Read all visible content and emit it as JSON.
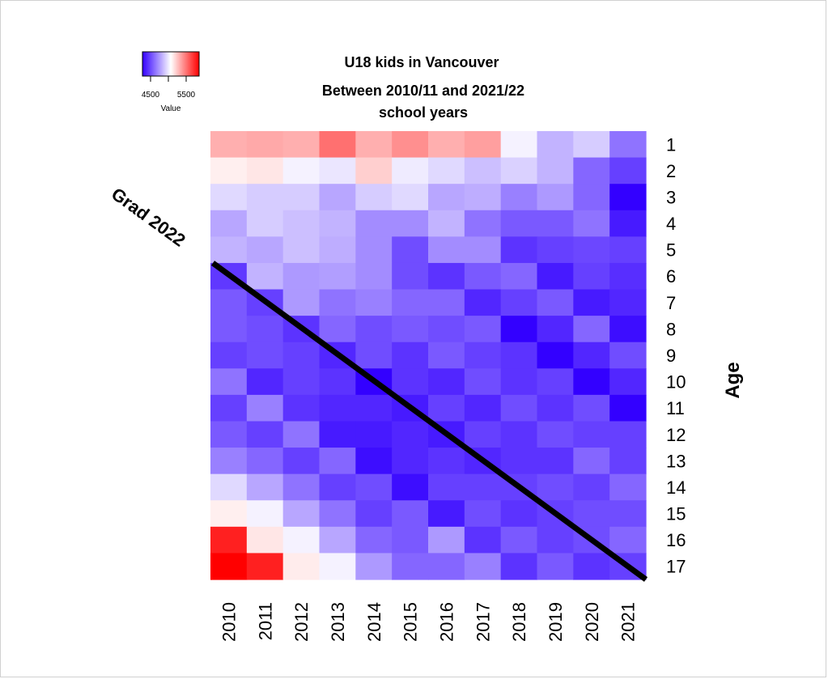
{
  "chart_data": {
    "type": "heatmap",
    "title_lines": [
      "U18 kids in Vancouver",
      "Between 2010/11 and 2021/22",
      "school years"
    ],
    "xlabel": "",
    "ylabel": "Age",
    "x_categories": [
      "2010",
      "2011",
      "2012",
      "2013",
      "2014",
      "2015",
      "2016",
      "2017",
      "2018",
      "2019",
      "2020",
      "2021"
    ],
    "y_categories": [
      "1",
      "2",
      "3",
      "4",
      "5",
      "6",
      "7",
      "8",
      "9",
      "10",
      "11",
      "12",
      "13",
      "14",
      "15",
      "16",
      "17"
    ],
    "values": [
      [
        5150,
        5170,
        5150,
        5350,
        5150,
        5250,
        5150,
        5200,
        4850,
        4600,
        4700,
        4350
      ],
      [
        4950,
        4980,
        4850,
        4800,
        5050,
        4820,
        4750,
        4650,
        4720,
        4600,
        4300,
        4150
      ],
      [
        4750,
        4700,
        4700,
        4550,
        4700,
        4750,
        4550,
        4580,
        4400,
        4500,
        4300,
        3900
      ],
      [
        4550,
        4700,
        4650,
        4600,
        4450,
        4450,
        4600,
        4350,
        4250,
        4250,
        4350,
        4000
      ],
      [
        4600,
        4550,
        4650,
        4580,
        4450,
        4200,
        4450,
        4450,
        4100,
        4150,
        4180,
        4150
      ],
      [
        4120,
        4600,
        4500,
        4520,
        4450,
        4200,
        4100,
        4250,
        4300,
        4000,
        4150,
        4080
      ],
      [
        4250,
        4150,
        4500,
        4350,
        4400,
        4300,
        4300,
        4050,
        4150,
        4250,
        4000,
        4050
      ],
      [
        4250,
        4200,
        4100,
        4300,
        4200,
        4250,
        4200,
        4250,
        3900,
        4050,
        4300,
        3950
      ],
      [
        4150,
        4200,
        4150,
        4050,
        4200,
        4100,
        4250,
        4150,
        4100,
        3900,
        4050,
        4200
      ],
      [
        4350,
        4050,
        4150,
        4100,
        3900,
        4100,
        4050,
        4200,
        4100,
        4150,
        3900,
        4050
      ],
      [
        4150,
        4400,
        4100,
        4050,
        4050,
        4000,
        4150,
        4050,
        4200,
        4100,
        4200,
        3900
      ],
      [
        4250,
        4150,
        4350,
        4000,
        4000,
        4050,
        4000,
        4150,
        4100,
        4200,
        4150,
        4150
      ],
      [
        4400,
        4300,
        4150,
        4300,
        3950,
        4050,
        4100,
        4050,
        4100,
        4100,
        4300,
        4150
      ],
      [
        4750,
        4550,
        4350,
        4150,
        4200,
        3950,
        4150,
        4150,
        4150,
        4200,
        4150,
        4300
      ],
      [
        4950,
        4850,
        4550,
        4350,
        4150,
        4250,
        4000,
        4200,
        4100,
        4150,
        4200,
        4200
      ],
      [
        5600,
        4980,
        4850,
        4550,
        4300,
        4250,
        4500,
        4100,
        4250,
        4150,
        4200,
        4300
      ],
      [
        5700,
        5600,
        4960,
        4850,
        4500,
        4300,
        4300,
        4400,
        4100,
        4250,
        4100,
        4150
      ]
    ],
    "color_scale": {
      "low": "#3300ff",
      "mid": "#ffffff",
      "high": "#ff0000",
      "range": [
        3900,
        5700
      ],
      "mid_value": 4900
    },
    "legend": {
      "title": "Value",
      "ticks": [
        "4500",
        "5500"
      ],
      "position": "top-left"
    },
    "annotation": {
      "text": "Grad 2022",
      "line_color": "#000000"
    },
    "grid": false
  }
}
